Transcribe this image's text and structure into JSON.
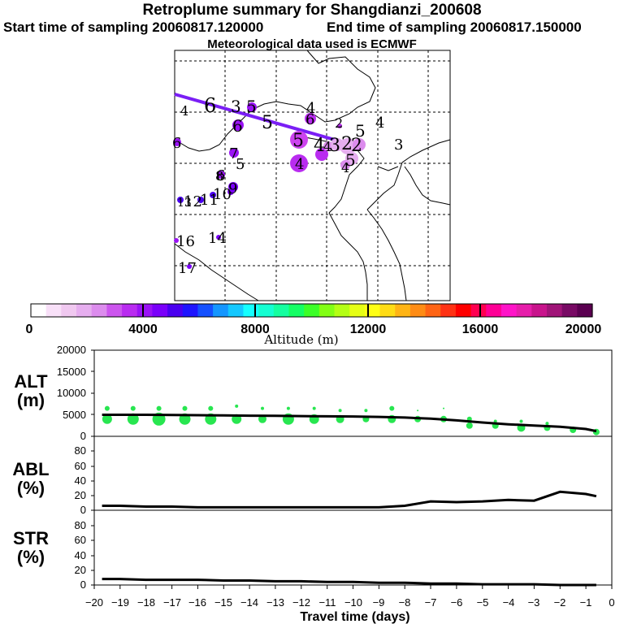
{
  "header": {
    "title": "Retroplume summary for Shangdianzi_200608",
    "start_label": "Start time of sampling 20060817.120000",
    "end_label": "End time of sampling 20060817.150000",
    "met_label": "Meteorological data used is ECMWF"
  },
  "colorbar": {
    "label": "Altitude (m)",
    "ticks": [
      "0",
      "4000",
      "8000",
      "12000",
      "16000",
      "20000"
    ],
    "range": [
      0,
      20000
    ],
    "colors": [
      "#ffffff",
      "#f8e0f8",
      "#f0c8f0",
      "#e6aeef",
      "#dc8ced",
      "#cc55ee",
      "#b92cf0",
      "#9a12f5",
      "#7a00fa",
      "#4a00f0",
      "#1e14ff",
      "#1450ff",
      "#1496ff",
      "#14c8ff",
      "#14ffff",
      "#14ffd2",
      "#14ffa0",
      "#14ff64",
      "#3cff28",
      "#82ff14",
      "#b4ff14",
      "#e6ff14",
      "#ffff14",
      "#ffdc14",
      "#ffb414",
      "#ff8c14",
      "#ff6414",
      "#ff3214",
      "#ff0000",
      "#ff0050",
      "#ff0096",
      "#ff14c8",
      "#e61eaa",
      "#c8148c",
      "#a01478",
      "#780a64",
      "#5a0050"
    ]
  },
  "map": {
    "trajectory_labels": [
      {
        "t": "4",
        "s": "s"
      },
      {
        "t": "6",
        "s": "l"
      },
      {
        "t": "3",
        "s": "m"
      },
      {
        "t": "5",
        "s": "m"
      },
      {
        "t": "5",
        "s": "l"
      },
      {
        "t": "6",
        "s": "m"
      },
      {
        "t": "4",
        "s": "m"
      },
      {
        "t": "6",
        "s": "m"
      },
      {
        "t": "2",
        "s": "s"
      },
      {
        "t": "5",
        "s": "m"
      },
      {
        "t": "4",
        "s": "m"
      },
      {
        "t": "3",
        "s": "m"
      },
      {
        "t": "5",
        "s": "l"
      },
      {
        "t": "4",
        "s": "l"
      },
      {
        "t": "3",
        "s": "l"
      },
      {
        "t": "2",
        "s": "l"
      },
      {
        "t": "2",
        "s": "l"
      },
      {
        "t": "5",
        "s": "m"
      },
      {
        "t": "6",
        "s": "m"
      },
      {
        "t": "4",
        "s": "m"
      },
      {
        "t": "6",
        "s": "m"
      },
      {
        "t": "7",
        "s": "m"
      },
      {
        "t": "5",
        "s": "m"
      },
      {
        "t": "8",
        "s": "m"
      },
      {
        "t": "9",
        "s": "m"
      },
      {
        "t": "10",
        "s": "m"
      },
      {
        "t": "11",
        "s": "m"
      },
      {
        "t": "12",
        "s": "m"
      },
      {
        "t": "13",
        "s": "m"
      },
      {
        "t": "16",
        "s": "m"
      },
      {
        "t": "14",
        "s": "m"
      },
      {
        "t": "17",
        "s": "m"
      },
      {
        "t": "4",
        "s": "m"
      },
      {
        "t": "4",
        "s": "m"
      }
    ]
  },
  "panels": {
    "alt": {
      "label_top": "ALT",
      "label_bottom": "(m)",
      "ticks": [
        "0",
        "5000",
        "10000",
        "15000",
        "20000"
      ]
    },
    "abl": {
      "label_top": "ABL",
      "label_bottom": "(%)",
      "ticks": [
        "0",
        "20",
        "40",
        "60",
        "80"
      ]
    },
    "str": {
      "label_top": "STR",
      "label_bottom": "(%)",
      "ticks": [
        "0",
        "20",
        "40",
        "60",
        "80"
      ]
    }
  },
  "xaxis": {
    "label": "Travel time (days)",
    "ticks": [
      "−20",
      "−19",
      "−18",
      "−17",
      "−16",
      "−15",
      "−14",
      "−13",
      "−12",
      "−11",
      "−10",
      "−9",
      "−8",
      "−7",
      "−6",
      "−5",
      "−4",
      "−3",
      "−2",
      "−1",
      "0"
    ]
  },
  "chart_data": [
    {
      "type": "line",
      "title": "ALT",
      "xlabel": "Travel time (days)",
      "ylabel": "ALT (m)",
      "xlim": [
        -20,
        0
      ],
      "ylim": [
        0,
        20000
      ],
      "x": [
        -19.7,
        -19,
        -18,
        -17,
        -16,
        -15,
        -14,
        -13,
        -12,
        -11,
        -10,
        -9,
        -8,
        -7,
        -6,
        -5,
        -4,
        -3,
        -2,
        -1,
        -0.6
      ],
      "series": [
        {
          "name": "mean altitude",
          "values": [
            5000,
            5000,
            5000,
            4950,
            4900,
            4850,
            4800,
            4750,
            4700,
            4650,
            4600,
            4500,
            4350,
            4100,
            3700,
            3200,
            2800,
            2500,
            2200,
            1700,
            1200
          ]
        }
      ],
      "scatter": [
        {
          "x": -19.5,
          "y": 4000,
          "r": 6
        },
        {
          "x": -19.5,
          "y": 6500,
          "r": 3
        },
        {
          "x": -18.5,
          "y": 4000,
          "r": 7
        },
        {
          "x": -18.5,
          "y": 6500,
          "r": 3
        },
        {
          "x": -17.5,
          "y": 4000,
          "r": 8
        },
        {
          "x": -17.5,
          "y": 6500,
          "r": 3
        },
        {
          "x": -16.5,
          "y": 4000,
          "r": 7
        },
        {
          "x": -16.5,
          "y": 6500,
          "r": 3
        },
        {
          "x": -15.5,
          "y": 4000,
          "r": 7
        },
        {
          "x": -15.5,
          "y": 6500,
          "r": 3
        },
        {
          "x": -14.5,
          "y": 4000,
          "r": 6
        },
        {
          "x": -14.5,
          "y": 7000,
          "r": 2
        },
        {
          "x": -13.5,
          "y": 4000,
          "r": 5
        },
        {
          "x": -13.5,
          "y": 6500,
          "r": 2
        },
        {
          "x": -12.5,
          "y": 4000,
          "r": 7
        },
        {
          "x": -12.5,
          "y": 6500,
          "r": 2
        },
        {
          "x": -11.5,
          "y": 4000,
          "r": 6
        },
        {
          "x": -11.5,
          "y": 6500,
          "r": 2
        },
        {
          "x": -10.5,
          "y": 4000,
          "r": 5
        },
        {
          "x": -10.5,
          "y": 6000,
          "r": 2
        },
        {
          "x": -9.5,
          "y": 4000,
          "r": 4
        },
        {
          "x": -9.5,
          "y": 6000,
          "r": 2
        },
        {
          "x": -8.5,
          "y": 4000,
          "r": 5
        },
        {
          "x": -8.5,
          "y": 6500,
          "r": 3
        },
        {
          "x": -7.5,
          "y": 4000,
          "r": 4
        },
        {
          "x": -7.5,
          "y": 6000,
          "r": 1
        },
        {
          "x": -6.5,
          "y": 4000,
          "r": 4
        },
        {
          "x": -6.5,
          "y": 6500,
          "r": 1
        },
        {
          "x": -5.5,
          "y": 2500,
          "r": 4
        },
        {
          "x": -5.5,
          "y": 4000,
          "r": 3
        },
        {
          "x": -4.5,
          "y": 2500,
          "r": 4
        },
        {
          "x": -4.5,
          "y": 3500,
          "r": 2
        },
        {
          "x": -3.5,
          "y": 2000,
          "r": 5
        },
        {
          "x": -3.5,
          "y": 3500,
          "r": 2
        },
        {
          "x": -2.5,
          "y": 2000,
          "r": 4
        },
        {
          "x": -2.5,
          "y": 3000,
          "r": 2
        },
        {
          "x": -1.5,
          "y": 1500,
          "r": 4
        },
        {
          "x": -0.6,
          "y": 1000,
          "r": 4
        }
      ]
    },
    {
      "type": "line",
      "title": "ABL",
      "xlabel": "Travel time (days)",
      "ylabel": "ABL (%)",
      "xlim": [
        -20,
        0
      ],
      "ylim": [
        0,
        100
      ],
      "x": [
        -19.7,
        -19,
        -18,
        -17,
        -16,
        -15,
        -14,
        -13,
        -12,
        -11,
        -10,
        -9,
        -8,
        -7,
        -6,
        -5,
        -4,
        -3,
        -2,
        -1,
        -0.6
      ],
      "series": [
        {
          "name": "ABL fraction",
          "values": [
            6,
            6,
            5,
            5,
            4,
            4,
            4,
            4,
            4,
            4,
            4,
            4,
            6,
            12,
            11,
            12,
            14,
            13,
            25,
            22,
            19
          ]
        }
      ]
    },
    {
      "type": "line",
      "title": "STR",
      "xlabel": "Travel time (days)",
      "ylabel": "STR (%)",
      "xlim": [
        -20,
        0
      ],
      "ylim": [
        0,
        100
      ],
      "x": [
        -19.7,
        -19,
        -18,
        -17,
        -16,
        -15,
        -14,
        -13,
        -12,
        -11,
        -10,
        -9,
        -8,
        -7,
        -6,
        -5,
        -4,
        -3,
        -2,
        -1,
        -0.6
      ],
      "series": [
        {
          "name": "stratospheric fraction",
          "values": [
            8,
            8,
            7,
            7,
            7,
            6,
            6,
            5,
            5,
            4,
            4,
            3,
            3,
            2,
            2,
            1,
            1,
            1,
            0,
            0,
            0
          ]
        }
      ]
    }
  ]
}
